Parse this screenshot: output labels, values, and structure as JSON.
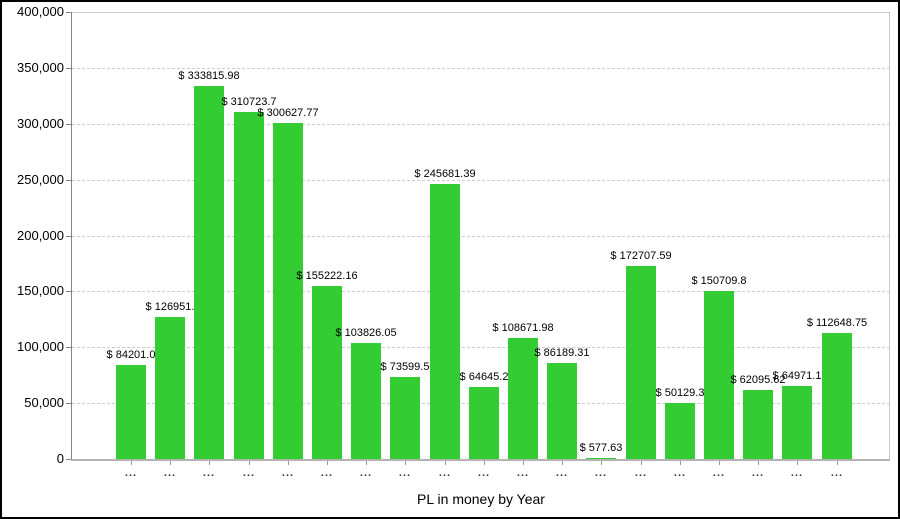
{
  "chart_data": {
    "type": "bar",
    "title": "PL in money by Year",
    "xlabel": "PL in money by Year",
    "ylabel": "",
    "ylim": [
      0,
      400000
    ],
    "ytick_step": 50000,
    "ytick_labels": [
      "0",
      "50,000",
      "100,000",
      "150,000",
      "200,000",
      "250,000",
      "300,000",
      "350,000",
      "400,000"
    ],
    "grid": true,
    "legend": false,
    "bar_color": "#33CC33",
    "currency_prefix": "$",
    "categories": [
      "...",
      "...",
      "...",
      "...",
      "...",
      "...",
      "...",
      "...",
      "...",
      "...",
      "...",
      "...",
      "...",
      "...",
      "...",
      "...",
      "...",
      "...",
      "..."
    ],
    "values": [
      84201.0,
      126951,
      333815.98,
      310723.7,
      300627.77,
      155222.16,
      103826.05,
      73599.5,
      245681.39,
      64645.2,
      108671.98,
      86189.31,
      577.63,
      172707.59,
      50129.3,
      150709.8,
      62095.62,
      64971.1,
      112648.75
    ],
    "bar_labels": [
      "$ 84201.0",
      "$ 126951.",
      "$ 333815.98",
      "$ 310723.7",
      "$ 300627.77",
      "$ 155222.16",
      "$ 103826.05",
      "$ 73599.5",
      "$ 245681.39",
      "$ 64645.2",
      "$ 108671.98",
      "$ 86189.31",
      "$ 577.63",
      "$ 172707.59",
      "$ 50129.3",
      "$ 150709.8",
      "$ 62095.62",
      "$ 64971.1",
      "$ 112648.75"
    ]
  },
  "colors": {
    "bar": "#33CC33",
    "gridline": "#CCCCCC",
    "axis_line_y": "#848484",
    "axis_line_x": "#B3B3B3",
    "plot_border": "#C8C8C8",
    "text": "#000000",
    "outer_border": "#000000"
  }
}
